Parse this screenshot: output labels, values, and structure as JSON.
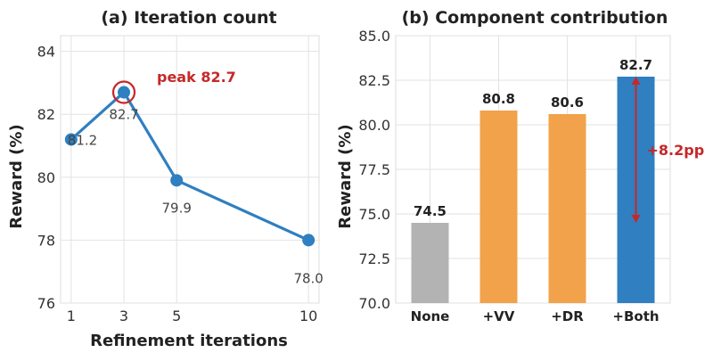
{
  "chart_data": [
    {
      "type": "line",
      "title": "(a) Iteration count",
      "xlabel": "Refinement iterations",
      "ylabel": "Reward (%)",
      "x": [
        1,
        3,
        5,
        10
      ],
      "y": [
        81.2,
        82.7,
        79.9,
        78.0
      ],
      "point_labels": [
        "81.2",
        "82.7",
        "79.9",
        "78.0"
      ],
      "xticks": [
        "1",
        "3",
        "5",
        "10"
      ],
      "yticks": [
        "76",
        "78",
        "80",
        "82",
        "84"
      ],
      "ylim": [
        76,
        84.5
      ],
      "xlim": [
        0.6,
        10.4
      ],
      "grid": true,
      "line_color": "#2f7fc1",
      "annotation": {
        "text": "peak 82.7",
        "x": 3,
        "y": 82.7,
        "color": "#c62828"
      }
    },
    {
      "type": "bar",
      "title": "(b) Component contribution",
      "xlabel": "",
      "ylabel": "Reward (%)",
      "categories": [
        "None",
        "+VV",
        "+DR",
        "+Both"
      ],
      "values": [
        74.5,
        80.8,
        80.6,
        82.7
      ],
      "value_labels": [
        "74.5",
        "80.8",
        "80.6",
        "82.7"
      ],
      "colors": [
        "#b3b3b3",
        "#f2a24a",
        "#f2a24a",
        "#2f7fc1"
      ],
      "yticks": [
        "70.0",
        "72.5",
        "75.0",
        "77.5",
        "80.0",
        "82.5",
        "85.0"
      ],
      "ylim": [
        70,
        85
      ],
      "grid": true,
      "annotation": {
        "text": "+8.2pp",
        "from": 74.5,
        "to": 82.7,
        "color": "#c62828"
      }
    }
  ]
}
